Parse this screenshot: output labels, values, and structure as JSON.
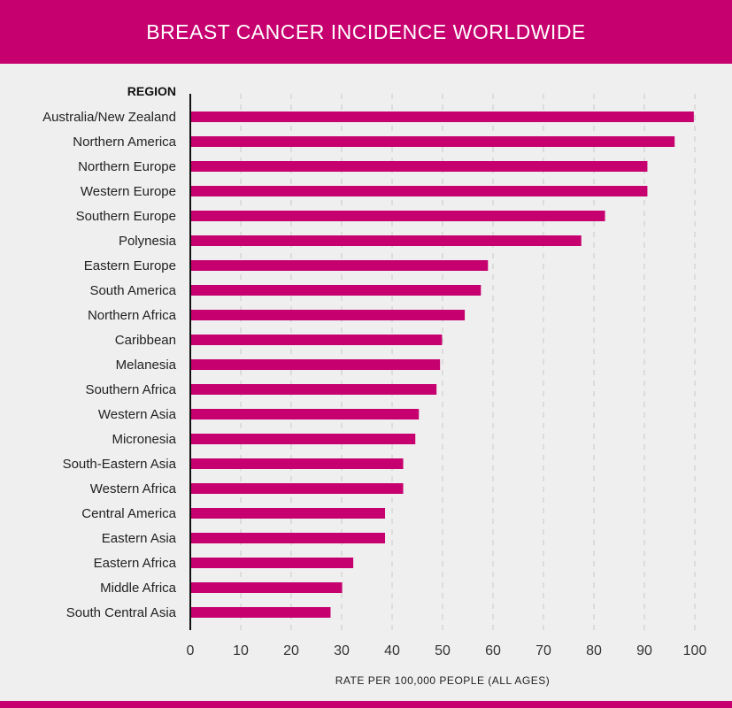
{
  "chart_data": {
    "type": "bar",
    "orientation": "horizontal",
    "title": "BREAST CANCER INCIDENCE WORLDWIDE",
    "ylabel": "REGION",
    "xlabel": "RATE PER 100,000 PEOPLE (ALL AGES)",
    "xlim": [
      0,
      100
    ],
    "xticks": [
      0,
      10,
      20,
      30,
      40,
      50,
      60,
      70,
      80,
      90,
      100
    ],
    "grid": true,
    "color": "#c6006f",
    "categories": [
      "Australia/New Zealand",
      "Northern America",
      "Northern Europe",
      "Western Europe",
      "Southern Europe",
      "Polynesia",
      "Eastern Europe",
      "South America",
      "Northern Africa",
      "Caribbean",
      "Melanesia",
      "Southern Africa",
      "Western Asia",
      "Micronesia",
      "South-Eastern Asia",
      "Western Africa",
      "Central America",
      "Eastern Asia",
      "Eastern Africa",
      "Middle Africa",
      "South Central Asia"
    ],
    "values": [
      99.8,
      96.0,
      90.6,
      90.6,
      82.2,
      77.5,
      59.0,
      57.6,
      54.4,
      49.9,
      49.5,
      48.8,
      45.3,
      44.6,
      42.2,
      42.2,
      38.6,
      38.6,
      32.3,
      30.1,
      27.8
    ]
  }
}
